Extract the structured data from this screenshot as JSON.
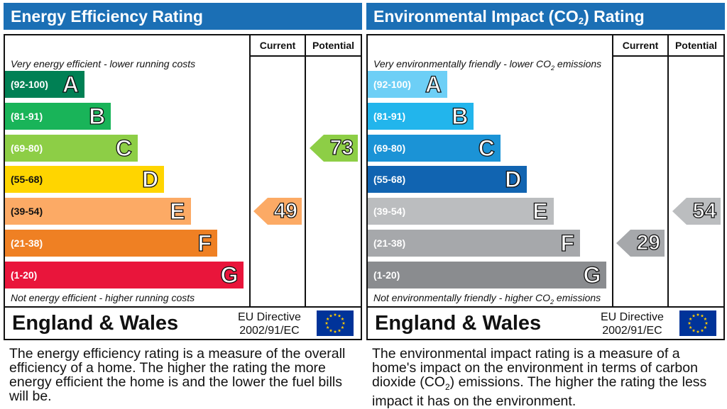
{
  "chart_data": [
    {
      "type": "bar",
      "title": "Energy Efficiency Rating",
      "columns": [
        "Current",
        "Potential"
      ],
      "top_label": "Very energy efficient - lower running costs",
      "bottom_label": "Not energy efficient - higher running costs",
      "bands": [
        {
          "range": "(92-100)",
          "letter": "A",
          "color": "#008054"
        },
        {
          "range": "(81-91)",
          "letter": "B",
          "color": "#19b459"
        },
        {
          "range": "(69-80)",
          "letter": "C",
          "color": "#8dce46"
        },
        {
          "range": "(55-68)",
          "letter": "D",
          "color": "#ffd500"
        },
        {
          "range": "(39-54)",
          "letter": "E",
          "color": "#fcaa65"
        },
        {
          "range": "(21-38)",
          "letter": "F",
          "color": "#ef8023"
        },
        {
          "range": "(1-20)",
          "letter": "G",
          "color": "#e9153b"
        }
      ],
      "current": {
        "value": 49,
        "label": "49",
        "band": "E",
        "color": "#fcaa65"
      },
      "potential": {
        "value": 73,
        "label": "73",
        "band": "C",
        "color": "#8dce46"
      },
      "region": "England & Wales",
      "directive": [
        "EU Directive",
        "2002/91/EC"
      ],
      "description": "The energy efficiency rating is a measure of the overall efficiency of a home. The higher the rating the more energy efficient the home is and the lower the fuel bills will be."
    },
    {
      "type": "bar",
      "title_parts": [
        "Environmental Impact (CO",
        "2",
        ") Rating"
      ],
      "columns": [
        "Current",
        "Potential"
      ],
      "top_label_parts": [
        "Very environmentally friendly - lower CO",
        "2",
        " emissions"
      ],
      "bottom_label_parts": [
        "Not environmentally friendly - higher CO",
        "2",
        " emissions"
      ],
      "bands": [
        {
          "range": "(92-100)",
          "letter": "A",
          "color": "#6dcff6"
        },
        {
          "range": "(81-91)",
          "letter": "B",
          "color": "#22b5ec"
        },
        {
          "range": "(69-80)",
          "letter": "C",
          "color": "#1b93d6"
        },
        {
          "range": "(55-68)",
          "letter": "D",
          "color": "#1164b1"
        },
        {
          "range": "(39-54)",
          "letter": "E",
          "color": "#bbbdbf"
        },
        {
          "range": "(21-38)",
          "letter": "F",
          "color": "#a6a8ab"
        },
        {
          "range": "(1-20)",
          "letter": "G",
          "color": "#8a8c8f"
        }
      ],
      "current": {
        "value": 29,
        "label": "29",
        "band": "F",
        "color": "#a6a8ab"
      },
      "potential": {
        "value": 54,
        "label": "54",
        "band": "E",
        "color": "#bbbdbf"
      },
      "region": "England & Wales",
      "directive": [
        "EU Directive",
        "2002/91/EC"
      ],
      "description_parts": [
        "The environmental impact rating is a measure of a home's impact on the environment in terms of carbon dioxide (CO",
        "2",
        ") emissions. The higher the rating the less impact it has on the environment."
      ]
    }
  ]
}
